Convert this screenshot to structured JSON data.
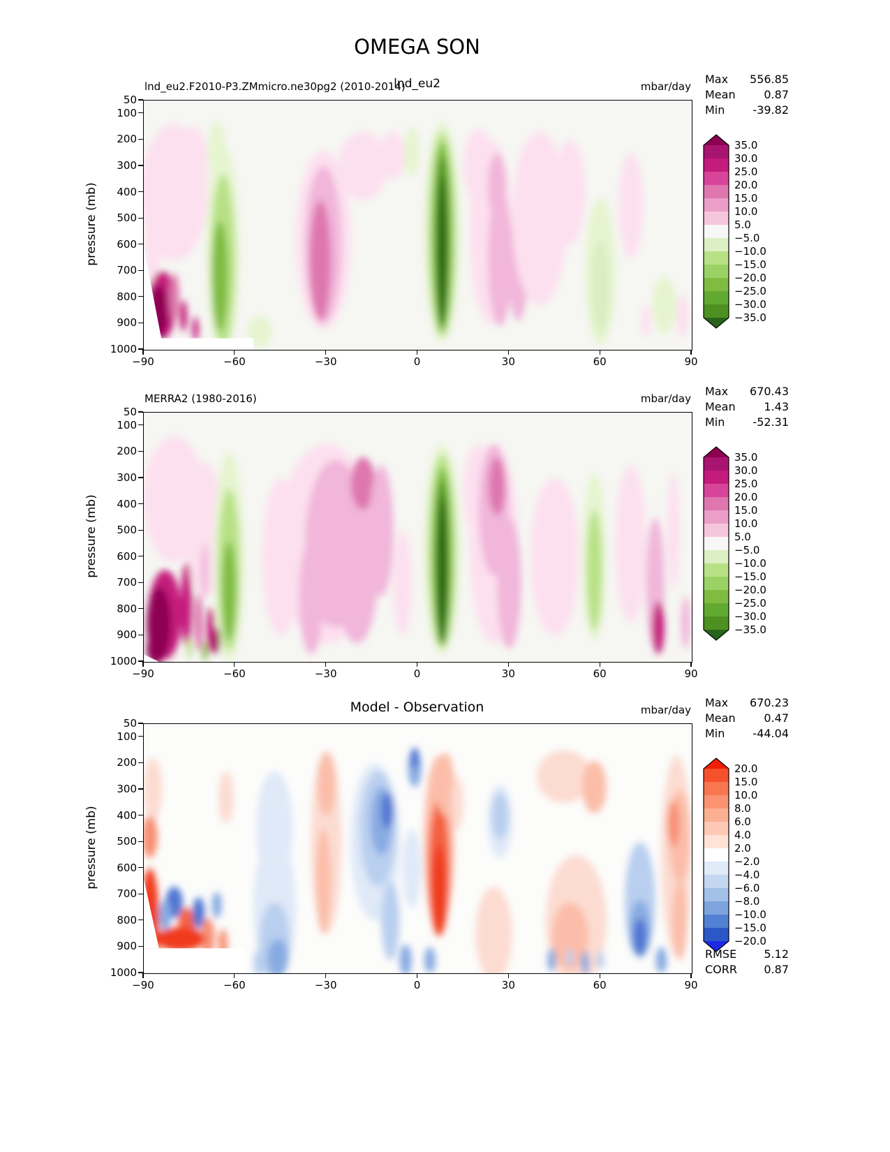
{
  "page_title": "OMEGA SON",
  "overlay_subtitle": "lnd_eu2",
  "axis": {
    "ylabel": "pressure (mb)",
    "x_ticks": [
      "−90",
      "−60",
      "−30",
      "0",
      "30",
      "60",
      "90"
    ],
    "y_ticks": [
      "50",
      "100",
      "200",
      "300",
      "400",
      "500",
      "600",
      "700",
      "800",
      "900",
      "1000"
    ]
  },
  "chart_data": [
    {
      "type": "contour",
      "title": "lnd_eu2.F2010-P3.ZMmicro.ne30pg2 (2010-2014)",
      "units": "mbar/day",
      "stats": [
        {
          "label": "Max",
          "value": "556.85"
        },
        {
          "label": "Mean",
          "value": "0.87"
        },
        {
          "label": "Min",
          "value": "-39.82"
        }
      ],
      "x_range": [
        -90,
        90
      ],
      "y_range": [
        50,
        1000
      ],
      "colorbar": {
        "labels": [
          "35.0",
          "30.0",
          "25.0",
          "20.0",
          "15.0",
          "10.0",
          "5.0",
          "−5.0",
          "−10.0",
          "−15.0",
          "−20.0",
          "−25.0",
          "−30.0",
          "−35.0"
        ],
        "colors": [
          "#8e0152",
          "#a81570",
          "#c51b7d",
          "#d8449a",
          "#de77ae",
          "#eb9fc8",
          "#f6c6de",
          "#f7f7f5",
          "#dcf0c4",
          "#b8e186",
          "#9bd265",
          "#7fbc41",
          "#62a932",
          "#4d9221",
          "#276419"
        ]
      },
      "features": [
        [
          -80,
          11,
          400,
          260,
          "#fde0ef"
        ],
        [
          -74,
          5,
          280,
          130,
          "#fde0ef"
        ],
        [
          -87,
          2.5,
          600,
          150,
          "#fde0ef"
        ],
        [
          -64,
          5.5,
          620,
          400,
          "#e6f5d0"
        ],
        [
          -66,
          3,
          240,
          110,
          "#e6f5d0"
        ],
        [
          -64,
          4,
          660,
          330,
          "#b8e186"
        ],
        [
          -65,
          2.6,
          720,
          210,
          "#7fbc41"
        ],
        [
          -52,
          4,
          930,
          60,
          "#e6f5d0"
        ],
        [
          -31,
          9,
          580,
          340,
          "#fde0ef"
        ],
        [
          -31,
          6,
          600,
          300,
          "#f1b6da"
        ],
        [
          -32,
          3.5,
          660,
          230,
          "#de77ae"
        ],
        [
          -18,
          8,
          300,
          130,
          "#fde0ef"
        ],
        [
          -8,
          4,
          260,
          90,
          "#fde0ef"
        ],
        [
          -2,
          2.5,
          245,
          95,
          "#e6f5d0"
        ],
        [
          8,
          6,
          550,
          420,
          "#e6f5d0"
        ],
        [
          8,
          4.5,
          560,
          390,
          "#b8e186"
        ],
        [
          8,
          3.2,
          570,
          360,
          "#7fbc41"
        ],
        [
          8,
          2.2,
          590,
          330,
          "#4d9221"
        ],
        [
          8,
          1.4,
          620,
          280,
          "#276419"
        ],
        [
          20,
          5,
          300,
          140,
          "#fde0ef"
        ],
        [
          24,
          7,
          550,
          350,
          "#fde0ef"
        ],
        [
          27,
          4,
          650,
          260,
          "#f1b6da"
        ],
        [
          26,
          3,
          380,
          130,
          "#f1b6da"
        ],
        [
          33,
          3.2,
          680,
          210,
          "#f1b6da"
        ],
        [
          40,
          9,
          500,
          330,
          "#fde0ef"
        ],
        [
          50,
          5,
          400,
          200,
          "#fde0ef"
        ],
        [
          60,
          5,
          700,
          280,
          "#e6f5d0"
        ],
        [
          60,
          3,
          760,
          180,
          "#d9eec2"
        ],
        [
          70,
          4,
          450,
          200,
          "#fde0ef"
        ],
        [
          81,
          4,
          830,
          110,
          "#e6f5d0"
        ],
        [
          75,
          1.5,
          890,
          60,
          "#fde0ef"
        ],
        [
          87,
          2,
          870,
          80,
          "#fde0ef"
        ],
        [
          -84,
          4.5,
          830,
          130,
          "#c51b7d"
        ],
        [
          -85,
          3,
          855,
          100,
          "#8e0152"
        ],
        [
          -80,
          1.6,
          800,
          90,
          "#de77ae"
        ],
        [
          -77,
          1.2,
          870,
          60,
          "#c51b7d"
        ],
        [
          -73,
          1,
          920,
          45,
          "#c51b7d"
        ]
      ],
      "masks": [
        [
          [
            -90,
            610
          ],
          [
            -83.5,
            1000
          ],
          [
            -90,
            1000
          ]
        ],
        [
          [
            -90,
            956
          ],
          [
            -54,
            956
          ],
          [
            -54,
            1005
          ],
          [
            -90,
            1005
          ]
        ]
      ]
    },
    {
      "type": "contour",
      "title": "MERRA2 (1980-2016)",
      "units": "mbar/day",
      "stats": [
        {
          "label": "Max",
          "value": "670.43"
        },
        {
          "label": "Mean",
          "value": "1.43"
        },
        {
          "label": "Min",
          "value": "-52.31"
        }
      ],
      "x_range": [
        -90,
        90
      ],
      "y_range": [
        50,
        1000
      ],
      "colorbar": {
        "labels": [
          "35.0",
          "30.0",
          "25.0",
          "20.0",
          "15.0",
          "10.0",
          "5.0",
          "−5.0",
          "−10.0",
          "−15.0",
          "−20.0",
          "−25.0",
          "−30.0",
          "−35.0"
        ],
        "colors": [
          "#8e0152",
          "#a81570",
          "#c51b7d",
          "#d8449a",
          "#de77ae",
          "#eb9fc8",
          "#f6c6de",
          "#f7f7f5",
          "#dcf0c4",
          "#b8e186",
          "#9bd265",
          "#7fbc41",
          "#62a932",
          "#4d9221",
          "#276419"
        ]
      },
      "features": [
        [
          -80,
          10,
          380,
          240,
          "#fde0ef"
        ],
        [
          -70,
          6,
          500,
          260,
          "#fde0ef"
        ],
        [
          -62,
          5,
          600,
          400,
          "#e6f5d0"
        ],
        [
          -62,
          3.6,
          650,
          310,
          "#b8e186"
        ],
        [
          -62,
          2.2,
          730,
          190,
          "#7fbc41"
        ],
        [
          -45,
          6,
          600,
          300,
          "#fde0ef"
        ],
        [
          -30,
          16,
          550,
          380,
          "#fde0ef"
        ],
        [
          -27,
          10,
          550,
          320,
          "#f1b6da"
        ],
        [
          -20,
          7,
          650,
          280,
          "#f1b6da"
        ],
        [
          -35,
          4,
          750,
          220,
          "#f1b6da"
        ],
        [
          -18,
          4,
          320,
          100,
          "#de77ae"
        ],
        [
          -12,
          4,
          500,
          250,
          "#f1b6da"
        ],
        [
          -5,
          3,
          700,
          200,
          "#fde0ef"
        ],
        [
          8,
          6,
          570,
          400,
          "#e6f5d0"
        ],
        [
          8,
          4.5,
          580,
          370,
          "#b8e186"
        ],
        [
          8,
          3.2,
          600,
          340,
          "#7fbc41"
        ],
        [
          8,
          2.2,
          620,
          310,
          "#4d9221"
        ],
        [
          8,
          1.5,
          650,
          280,
          "#276419"
        ],
        [
          20,
          5,
          350,
          180,
          "#fde0ef"
        ],
        [
          25,
          8,
          550,
          380,
          "#fde0ef"
        ],
        [
          25,
          5,
          420,
          250,
          "#f1b6da"
        ],
        [
          26,
          2.8,
          330,
          110,
          "#de77ae"
        ],
        [
          30,
          4,
          700,
          250,
          "#f1b6da"
        ],
        [
          45,
          8,
          600,
          300,
          "#fde0ef"
        ],
        [
          58,
          4,
          600,
          320,
          "#e6f5d0"
        ],
        [
          58,
          2.5,
          650,
          230,
          "#b8e186"
        ],
        [
          70,
          5,
          550,
          300,
          "#fde0ef"
        ],
        [
          78,
          3,
          700,
          250,
          "#f1b6da"
        ],
        [
          84,
          2,
          500,
          220,
          "#fde0ef"
        ],
        [
          88,
          1.5,
          850,
          100,
          "#f1b6da"
        ],
        [
          -83,
          5.5,
          820,
          170,
          "#c51b7d"
        ],
        [
          -85,
          4,
          855,
          140,
          "#8e0152"
        ],
        [
          -86,
          3,
          950,
          60,
          "#8e0152"
        ],
        [
          -76,
          1.8,
          780,
          160,
          "#c51b7d"
        ],
        [
          -72,
          1.4,
          850,
          110,
          "#de77ae"
        ],
        [
          -70,
          1.2,
          650,
          100,
          "#f1b6da"
        ],
        [
          -68,
          1.3,
          880,
          90,
          "#c51b7d"
        ],
        [
          -66,
          1,
          920,
          50,
          "#8e0152"
        ],
        [
          -75,
          0.8,
          950,
          40,
          "#b8e186"
        ],
        [
          -70,
          0.8,
          960,
          40,
          "#7fbc41"
        ],
        [
          79,
          2,
          870,
          100,
          "#c51b7d"
        ]
      ],
      "masks": [
        [
          [
            -90,
            972
          ],
          [
            -84,
            1005
          ],
          [
            -90,
            1005
          ]
        ]
      ]
    },
    {
      "type": "contour",
      "title": "Model - Observation",
      "units": "mbar/day",
      "stats": [
        {
          "label": "Max",
          "value": "670.23"
        },
        {
          "label": "Mean",
          "value": "0.47"
        },
        {
          "label": "Min",
          "value": "-44.04"
        }
      ],
      "footer_stats": [
        {
          "label": "RMSE",
          "value": "5.12"
        },
        {
          "label": "CORR",
          "value": "0.87"
        }
      ],
      "x_range": [
        -90,
        90
      ],
      "y_range": [
        50,
        1000
      ],
      "colorbar": {
        "labels": [
          "20.0",
          "15.0",
          "10.0",
          "8.0",
          "6.0",
          "4.0",
          "2.0",
          "−2.0",
          "−4.0",
          "−6.0",
          "−8.0",
          "−10.0",
          "−15.0",
          "−20.0"
        ],
        "colors": [
          "#f01e06",
          "#f4512c",
          "#f87650",
          "#fa9372",
          "#fcb093",
          "#fdc9b4",
          "#fee3d6",
          "#ffffff",
          "#e0eaf8",
          "#c4d7f1",
          "#a3c0e8",
          "#7da4dd",
          "#5280d2",
          "#2b57c7",
          "#1b2ae8"
        ]
      },
      "features": [
        [
          -87,
          3,
          300,
          120,
          "#fcdcd1"
        ],
        [
          -88,
          2.5,
          480,
          80,
          "#f78f72"
        ],
        [
          -88,
          3,
          800,
          200,
          "#f03b1e"
        ],
        [
          -63,
          2.5,
          330,
          100,
          "#fcdcd1"
        ],
        [
          -47,
          6,
          450,
          220,
          "#dfe9f8"
        ],
        [
          -47,
          7,
          750,
          280,
          "#dfe9f8"
        ],
        [
          -47,
          5,
          880,
          150,
          "#b9cfef"
        ],
        [
          -46,
          3.5,
          940,
          70,
          "#88abe2"
        ],
        [
          -52,
          2,
          960,
          50,
          "#b9cfef"
        ],
        [
          -30,
          5,
          500,
          350,
          "#fcdcd1"
        ],
        [
          -30,
          3,
          280,
          120,
          "#fbbda9"
        ],
        [
          -31,
          2.5,
          650,
          200,
          "#fbbda9"
        ],
        [
          -14,
          8,
          500,
          300,
          "#dfe9f8"
        ],
        [
          -13,
          6,
          450,
          220,
          "#b9cfef"
        ],
        [
          -12,
          3.5,
          420,
          130,
          "#88abe2"
        ],
        [
          -10,
          2,
          380,
          70,
          "#5076d2"
        ],
        [
          -9,
          3,
          800,
          150,
          "#b9cfef"
        ],
        [
          -2,
          3,
          600,
          150,
          "#dfe9f8"
        ],
        [
          -4,
          2,
          950,
          60,
          "#88abe2"
        ],
        [
          -1,
          2.2,
          220,
          70,
          "#88abe2"
        ],
        [
          -1,
          1.5,
          180,
          40,
          "#5076d2"
        ],
        [
          7,
          5,
          500,
          330,
          "#fbbda9"
        ],
        [
          7,
          3.5,
          600,
          260,
          "#f4603f"
        ],
        [
          7,
          2.3,
          680,
          170,
          "#f03b1e"
        ],
        [
          9,
          3,
          280,
          120,
          "#fbbda9"
        ],
        [
          13,
          2,
          350,
          100,
          "#fcdcd1"
        ],
        [
          4,
          1.8,
          950,
          50,
          "#88abe2"
        ],
        [
          27,
          4,
          420,
          140,
          "#dfe9f8"
        ],
        [
          27,
          2.8,
          400,
          90,
          "#b9cfef"
        ],
        [
          25,
          6,
          850,
          180,
          "#fcdcd1"
        ],
        [
          48,
          9,
          250,
          100,
          "#fcdcd1"
        ],
        [
          58,
          4,
          290,
          100,
          "#fbbda9"
        ],
        [
          52,
          10,
          800,
          250,
          "#fcdcd1"
        ],
        [
          50,
          6,
          860,
          130,
          "#fbbda9"
        ],
        [
          44,
          1.4,
          950,
          45,
          "#88abe2"
        ],
        [
          50,
          1.1,
          940,
          35,
          "#b9cfef"
        ],
        [
          55,
          1.4,
          960,
          45,
          "#88abe2"
        ],
        [
          60,
          1.2,
          950,
          35,
          "#b9cfef"
        ],
        [
          73,
          5,
          720,
          220,
          "#b9cfef"
        ],
        [
          73,
          3.5,
          830,
          110,
          "#88abe2"
        ],
        [
          73,
          2.2,
          860,
          70,
          "#5076d2"
        ],
        [
          85,
          5,
          550,
          380,
          "#fcdcd1"
        ],
        [
          86,
          3.5,
          480,
          180,
          "#fbbda9"
        ],
        [
          84,
          2,
          430,
          90,
          "#f78f72"
        ],
        [
          86,
          2.5,
          800,
          150,
          "#fbbda9"
        ],
        [
          80,
          1.8,
          950,
          50,
          "#88abe2"
        ],
        [
          -80,
          2.8,
          730,
          60,
          "#5076d2"
        ],
        [
          -83,
          2,
          780,
          60,
          "#88abe2"
        ],
        [
          -76,
          2.8,
          830,
          80,
          "#f4603f"
        ],
        [
          -72,
          2,
          770,
          60,
          "#5076d2"
        ],
        [
          -69,
          2.2,
          860,
          70,
          "#f78f72"
        ],
        [
          -66,
          1.6,
          740,
          50,
          "#88abe2"
        ],
        [
          -64,
          1.5,
          890,
          60,
          "#f78f72"
        ],
        [
          -78,
          8,
          870,
          45,
          "#f03b1e"
        ]
      ],
      "masks": [
        [
          [
            -90,
            640
          ],
          [
            -85,
            905
          ],
          [
            -90,
            905
          ]
        ],
        [
          [
            -90,
            905
          ],
          [
            -57,
            905
          ],
          [
            -57,
            1005
          ],
          [
            -90,
            1005
          ]
        ]
      ]
    }
  ]
}
